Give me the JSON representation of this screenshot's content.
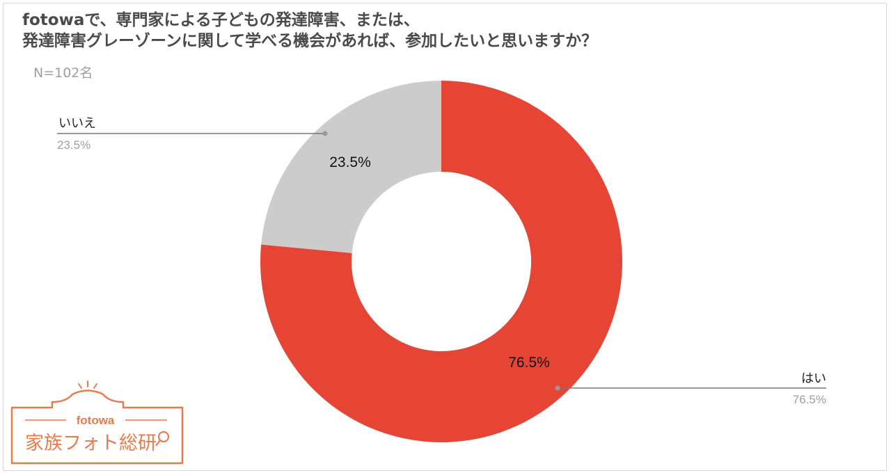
{
  "title": {
    "line1": "fotowaで、専門家による子どもの発達障害、または、",
    "line2": "発達障害グレーゾーンに関して学べる機会があれば、参加したいと思いますか？"
  },
  "subtitle": "N=102名",
  "chart_data": {
    "type": "pie",
    "donut": true,
    "categories": [
      "はい",
      "いいえ"
    ],
    "values": [
      76.5,
      23.5
    ],
    "value_labels": [
      "76.5%",
      "23.5%"
    ],
    "colors": [
      "#e64535",
      "#cccccc"
    ],
    "legend": "callouts"
  },
  "logo": {
    "brand": "fotowa",
    "name": "家族フォト総研",
    "color": "#ea7a4b",
    "icon": "magnifier-icon"
  }
}
